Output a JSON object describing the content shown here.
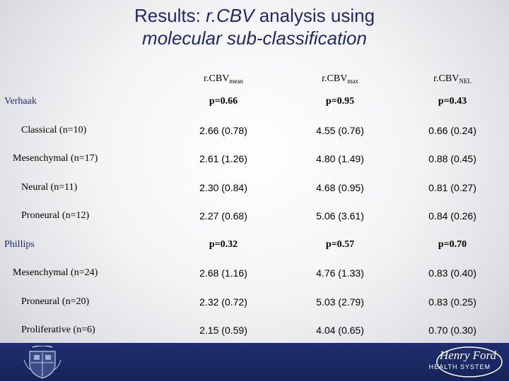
{
  "title": {
    "line1_prefix": "Results: ",
    "line1_em": "r.CBV",
    "line1_suffix": " analysis using",
    "line2": "molecular sub-classification"
  },
  "columns": {
    "mean": {
      "base": "r.CBV",
      "sub": "mean"
    },
    "max": {
      "base": "r.CBV",
      "sub": "max"
    },
    "nel": {
      "base": "r.CBV",
      "sub": "NEL"
    }
  },
  "groups": [
    {
      "name": "Verhaak",
      "p": [
        "p=0.66",
        "p=0.95",
        "p=0.43"
      ],
      "rows": [
        {
          "label": "Classical (n=10)",
          "values": [
            "2.66 (0.78)",
            "4.55 (0.76)",
            "0.66 (0.24)"
          ]
        },
        {
          "label": "Mesenchymal (n=17)",
          "values": [
            "2.61 (1.26)",
            "4.80 (1.49)",
            "0.88 (0.45)"
          ]
        },
        {
          "label": "Neural (n=11)",
          "values": [
            "2.30 (0.84)",
            "4.68 (0.95)",
            "0.81 (0.27)"
          ]
        },
        {
          "label": "Proneural (n=12)",
          "values": [
            "2.27 (0.68)",
            "5.06 (3.61)",
            "0.84 (0.26)"
          ]
        }
      ]
    },
    {
      "name": "Phillips",
      "p": [
        "p=0.32",
        "p=0.57",
        "p=0.70"
      ],
      "rows": [
        {
          "label": "Mesenchymal (n=24)",
          "values": [
            "2.68 (1.16)",
            "4.76 (1.33)",
            "0.83 (0.40)"
          ]
        },
        {
          "label": "Proneural (n=20)",
          "values": [
            "2.32 (0.72)",
            "5.03 (2.79)",
            "0.83 (0.25)"
          ]
        },
        {
          "label": "Proliferative (n=6)",
          "values": [
            "2.15 (0.59)",
            "4.04 (0.65)",
            "0.70 (0.30)"
          ]
        }
      ]
    }
  ],
  "footer": {
    "logo_line1": "Henry Ford",
    "logo_line2": "HEALTH SYSTEM",
    "colors": {
      "bar": "#1f2f6e",
      "title": "#1f2a6b"
    }
  }
}
